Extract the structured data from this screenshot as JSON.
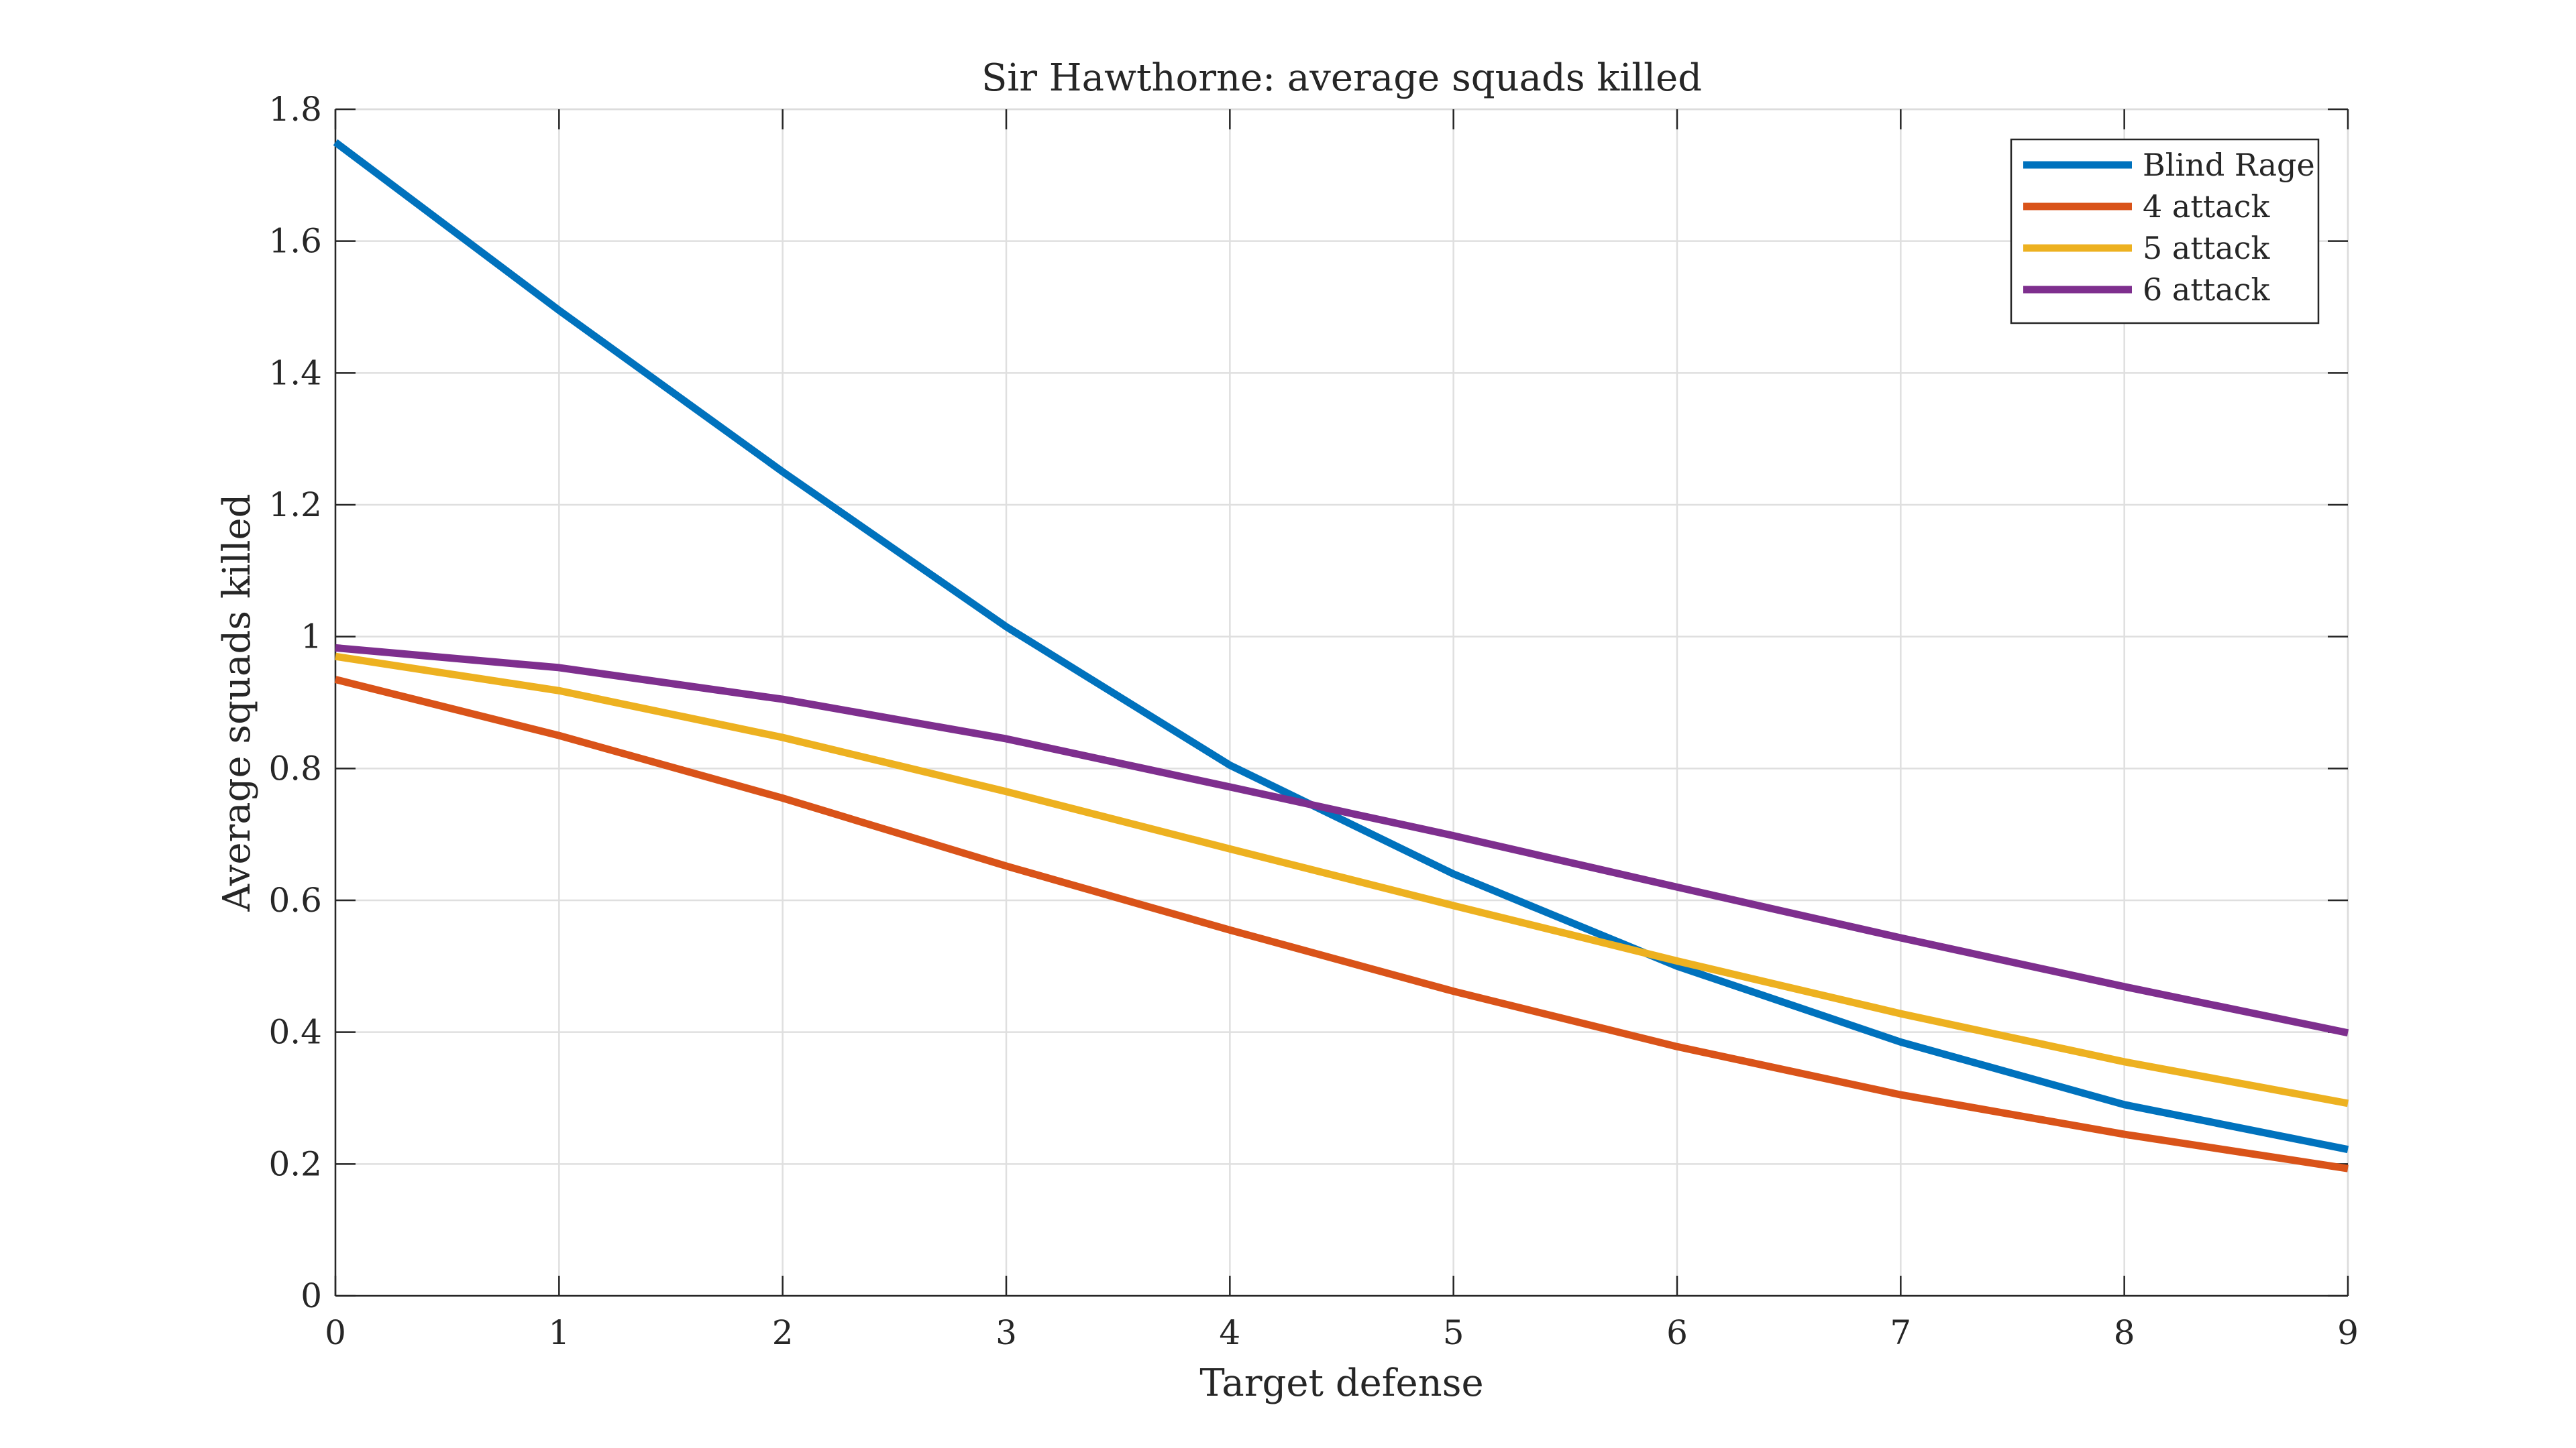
{
  "chart_data": {
    "type": "line",
    "title": "Sir Hawthorne: average squads killed",
    "xlabel": "Target defense",
    "ylabel": "Average squads killed",
    "xlim": [
      0,
      9
    ],
    "ylim": [
      0,
      1.8
    ],
    "x": [
      0,
      1,
      2,
      3,
      4,
      5,
      6,
      7,
      8,
      9
    ],
    "x_ticks": [
      "0",
      "1",
      "2",
      "3",
      "4",
      "5",
      "6",
      "7",
      "8",
      "9"
    ],
    "y_tick_values": [
      0,
      0.2,
      0.4,
      0.6,
      0.8,
      1,
      1.2,
      1.4,
      1.6,
      1.8
    ],
    "y_ticks": [
      "0",
      "0.2",
      "0.4",
      "0.6",
      "0.8",
      "1",
      "1.2",
      "1.4",
      "1.6",
      "1.8"
    ],
    "grid": true,
    "legend_position": "top-right",
    "series": [
      {
        "name": "Blind Rage",
        "color": "#0072BD",
        "values": [
          1.75,
          1.495,
          1.25,
          1.015,
          0.805,
          0.64,
          0.5,
          0.385,
          0.29,
          0.222
        ]
      },
      {
        "name": "4 attack",
        "color": "#D95319",
        "values": [
          0.935,
          0.85,
          0.755,
          0.652,
          0.555,
          0.462,
          0.378,
          0.305,
          0.245,
          0.193
        ]
      },
      {
        "name": "5 attack",
        "color": "#EDB120",
        "values": [
          0.97,
          0.918,
          0.847,
          0.765,
          0.678,
          0.592,
          0.508,
          0.428,
          0.355,
          0.292
        ]
      },
      {
        "name": "6 attack",
        "color": "#7E2F8E",
        "values": [
          0.983,
          0.953,
          0.905,
          0.845,
          0.772,
          0.698,
          0.62,
          0.543,
          0.469,
          0.399
        ]
      }
    ]
  }
}
